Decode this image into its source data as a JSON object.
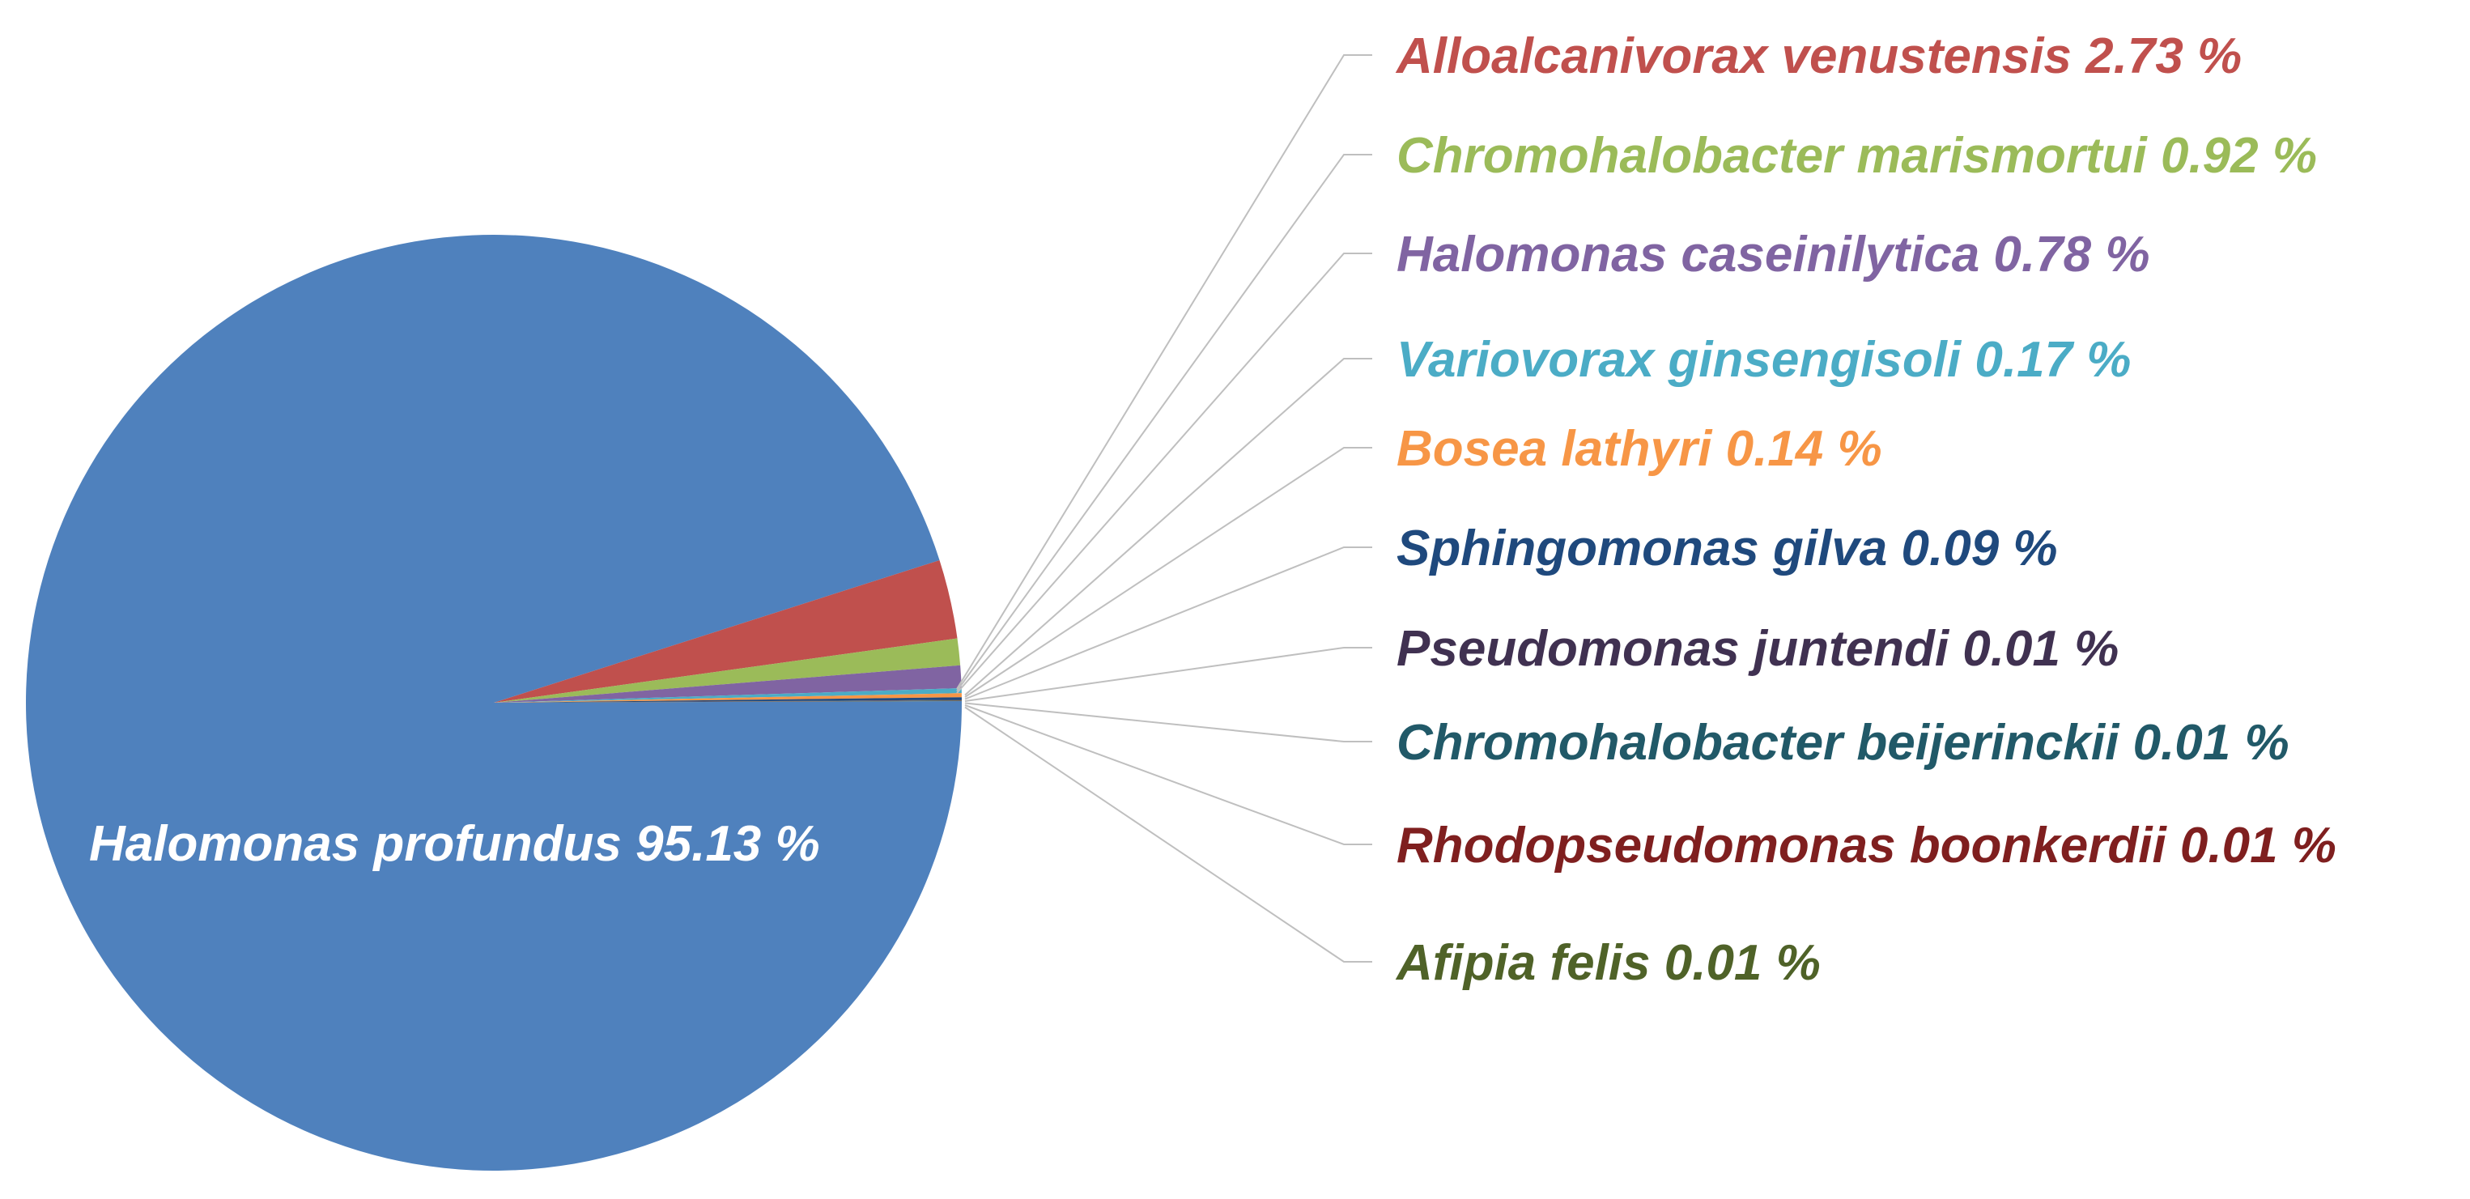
{
  "chart_data": {
    "type": "pie",
    "title": "",
    "slices": [
      {
        "label": "Halomonas profundus 95.13 %",
        "value": 95.13,
        "color": "#4f81bd",
        "text_color": "#ffffff"
      },
      {
        "label": "Alloalcanivorax venustensis 2.73 %",
        "value": 2.73,
        "color": "#c0504d",
        "text_color": "#c0504d"
      },
      {
        "label": "Chromohalobacter marismortui 0.92 %",
        "value": 0.92,
        "color": "#9bbb59",
        "text_color": "#9bbb59"
      },
      {
        "label": "Halomonas caseinilytica 0.78 %",
        "value": 0.78,
        "color": "#8064a2",
        "text_color": "#8064a2"
      },
      {
        "label": "Variovorax ginsengisoli 0.17 %",
        "value": 0.17,
        "color": "#4bacc6",
        "text_color": "#4bacc6"
      },
      {
        "label": "Bosea lathyri 0.14 %",
        "value": 0.14,
        "color": "#f79646",
        "text_color": "#f79646"
      },
      {
        "label": "Sphingomonas gilva 0.09 %",
        "value": 0.09,
        "color": "#1f497d",
        "text_color": "#1f497d"
      },
      {
        "label": "Pseudomonas juntendi 0.01 %",
        "value": 0.01,
        "color": "#403151",
        "text_color": "#403151"
      },
      {
        "label": "Chromohalobacter beijerinckii 0.01 %",
        "value": 0.01,
        "color": "#215968",
        "text_color": "#215968"
      },
      {
        "label": "Rhodopseudomonas boonkerdii 0.01 %",
        "value": 0.01,
        "color": "#7f1f1f",
        "text_color": "#7f1f1f"
      },
      {
        "label": "Afipia felis 0.01 %",
        "value": 0.01,
        "color": "#4f6228",
        "text_color": "#4f6228"
      }
    ],
    "leader_line_color": "#bfbfbf"
  }
}
